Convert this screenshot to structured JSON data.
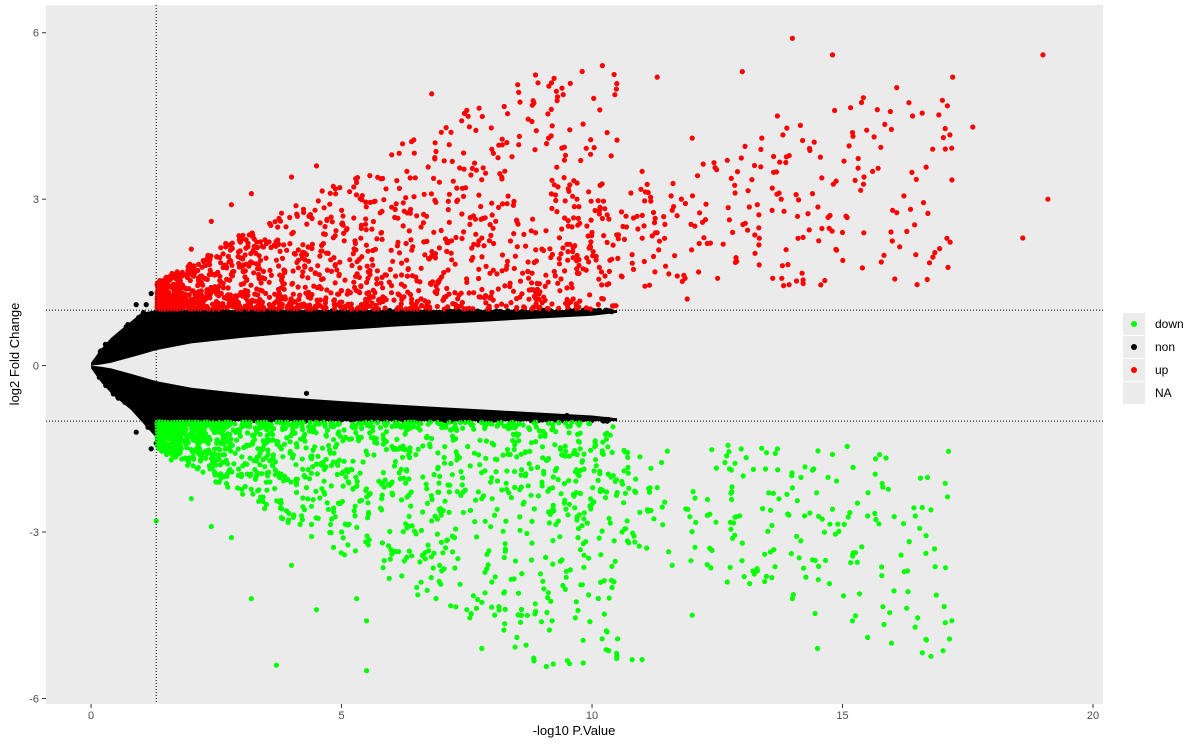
{
  "chart_data": {
    "type": "scatter",
    "title": "",
    "xlabel": "-log10 P.Value",
    "ylabel": "log2 Fold Change",
    "xlim": [
      -0.9,
      20.2
    ],
    "ylim": [
      -6.1,
      6.5
    ],
    "x_ticks": [
      0,
      5,
      10,
      15,
      20
    ],
    "x_tick_labels": [
      "0",
      "5",
      "10",
      "15",
      "20"
    ],
    "y_ticks": [
      -6,
      -3,
      0,
      3,
      6
    ],
    "y_tick_labels": [
      "-6",
      "-3",
      "0",
      "3",
      "6"
    ],
    "threshold_lines": {
      "x": [
        1.3
      ],
      "y": [
        -1,
        1
      ]
    },
    "grid": false,
    "panel_background": "#ebebeb",
    "legend": {
      "placement": "right",
      "entries": [
        {
          "label": "down",
          "color": "#00ff00"
        },
        {
          "label": "non",
          "color": "#000000"
        },
        {
          "label": "up",
          "color": "#ff0000"
        },
        {
          "label": "NA",
          "color": ""
        }
      ]
    },
    "series": [
      {
        "key": "up",
        "color": "#ff0000",
        "x": [
          1.4,
          1.6,
          1.8,
          2.0,
          2.2,
          2.4,
          2.6,
          2.8,
          3.0,
          3.2,
          3.5,
          3.8,
          4.0,
          4.3,
          4.5,
          4.8,
          5.0,
          5.3,
          5.5,
          5.8,
          6.0,
          6.3,
          6.5,
          6.8,
          7.0,
          7.3,
          7.5,
          7.8,
          8.0,
          8.3,
          8.5,
          8.8,
          9.0,
          9.4,
          9.7,
          10.0,
          10.3,
          10.6,
          11.0,
          11.3,
          11.6,
          12.0,
          12.3,
          12.7,
          13.0,
          13.3,
          13.7,
          14.0,
          14.4,
          14.8,
          15.2,
          15.6,
          16.0,
          16.4,
          16.8,
          17.2,
          17.6,
          18.6,
          19.0,
          19.1,
          2.1,
          3.7,
          4.2,
          6.9,
          7.5,
          9.5,
          10.8,
          11.9,
          13.8,
          15.0
        ],
        "y": [
          1.2,
          1.6,
          1.4,
          2.1,
          1.5,
          2.6,
          1.3,
          2.9,
          1.8,
          3.1,
          2.2,
          1.4,
          3.4,
          2.0,
          3.6,
          1.7,
          2.8,
          3.3,
          1.5,
          2.4,
          3.8,
          1.9,
          2.7,
          4.9,
          1.6,
          3.2,
          4.6,
          2.3,
          3.9,
          1.8,
          2.6,
          4.4,
          2.1,
          5.0,
          3.0,
          2.4,
          4.2,
          1.6,
          3.5,
          5.2,
          2.8,
          4.1,
          2.2,
          3.7,
          5.3,
          2.9,
          4.5,
          5.9,
          3.1,
          5.6,
          4.2,
          3.5,
          2.8,
          4.5,
          3.9,
          5.2,
          4.3,
          2.3,
          5.6,
          3.0,
          1.3,
          1.9,
          1.1,
          1.3,
          1.5,
          1.4,
          2.0,
          1.2,
          1.8,
          2.4
        ]
      },
      {
        "key": "down",
        "color": "#00ff00",
        "x": [
          1.4,
          1.6,
          1.8,
          2.0,
          2.2,
          2.4,
          2.6,
          2.8,
          3.0,
          3.2,
          3.5,
          3.8,
          4.0,
          4.3,
          4.5,
          4.8,
          5.0,
          5.3,
          5.5,
          5.8,
          6.0,
          6.3,
          6.5,
          6.8,
          7.0,
          7.3,
          7.5,
          7.8,
          8.0,
          8.3,
          8.5,
          8.8,
          9.0,
          9.4,
          9.7,
          10.0,
          10.3,
          10.6,
          11.0,
          11.3,
          11.6,
          12.0,
          12.3,
          12.7,
          13.0,
          13.3,
          13.7,
          14.0,
          14.4,
          14.8,
          15.2,
          15.5,
          16.3,
          1.3,
          3.7,
          5.5,
          10.8,
          10.4,
          7.8,
          14.5
        ],
        "y": [
          -1.3,
          -1.7,
          -1.5,
          -2.4,
          -1.6,
          -2.9,
          -1.4,
          -3.1,
          -2.0,
          -4.2,
          -2.5,
          -1.5,
          -3.6,
          -2.2,
          -4.4,
          -1.8,
          -3.0,
          -4.2,
          -5.5,
          -2.6,
          -3.4,
          -1.9,
          -4.0,
          -2.8,
          -3.7,
          -1.7,
          -4.4,
          -2.4,
          -3.9,
          -1.9,
          -4.9,
          -3.2,
          -2.1,
          -3.5,
          -1.6,
          -2.5,
          -4.8,
          -3.0,
          -5.3,
          -2.2,
          -3.6,
          -4.5,
          -2.7,
          -3.9,
          -3.2,
          -3.7,
          -1.5,
          -4.2,
          -3.5,
          -1.6,
          -4.6,
          -4.9,
          -3.7,
          -2.8,
          -5.4,
          -4.6,
          -5.3,
          -4.0,
          -5.1,
          -5.1
        ]
      }
    ],
    "non_significant": {
      "key": "non",
      "color": "#000000",
      "envelope": {
        "x": [
          0,
          0.2,
          0.4,
          0.6,
          0.8,
          1.0,
          1.3,
          2.0,
          3.0,
          4.0,
          5.0,
          6.0,
          7.0,
          8.0,
          9.0,
          10.0,
          10.5
        ],
        "upper": [
          0.05,
          0.3,
          0.5,
          0.65,
          0.8,
          0.95,
          1.0,
          1.0,
          1.0,
          1.0,
          1.0,
          1.0,
          1.0,
          1.0,
          1.0,
          1.0,
          1.0
        ],
        "lower": [
          -0.05,
          -0.3,
          -0.5,
          -0.65,
          -0.8,
          -1.0,
          -1.3,
          -1.0,
          -1.0,
          -1.0,
          -1.0,
          -1.0,
          -1.0,
          -1.0,
          -1.0,
          -1.0,
          -1.0
        ],
        "inner": [
          0.0,
          0.02,
          0.05,
          0.1,
          0.15,
          0.2,
          0.28,
          0.4,
          0.5,
          0.58,
          0.64,
          0.7,
          0.75,
          0.8,
          0.85,
          0.9,
          0.95
        ],
        "density_x_end": [
          10.5,
          10.5
        ]
      },
      "outliers": {
        "x": [
          0.7,
          0.9,
          1.1,
          1.2,
          0.9,
          1.2,
          1.3,
          4.3,
          7.8,
          9.5,
          10.3
        ],
        "y": [
          0.7,
          1.1,
          1.1,
          1.3,
          -1.2,
          -1.5,
          -1.4,
          -0.5,
          0.9,
          -0.9,
          -1.0
        ]
      }
    }
  }
}
